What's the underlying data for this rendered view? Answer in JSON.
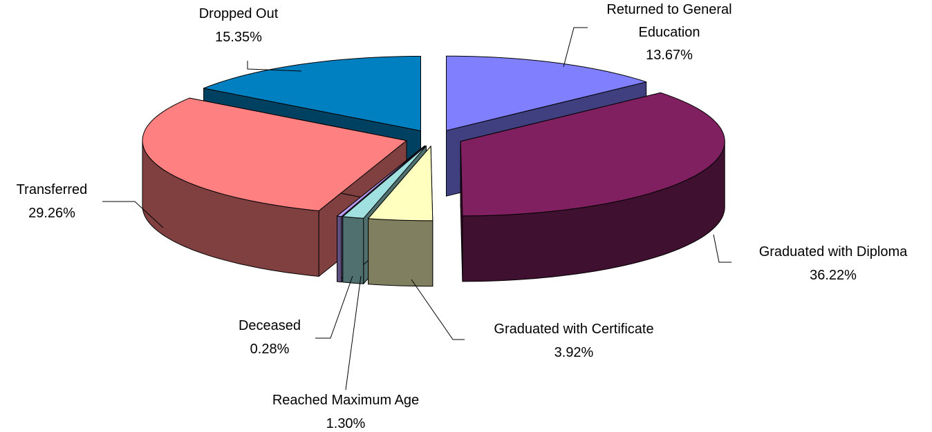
{
  "chart_data": {
    "type": "pie",
    "categories": [
      "Returned to General Education",
      "Graduated with Diploma",
      "Graduated with Certificate",
      "Reached Maximum Age",
      "Deceased",
      "Transferred",
      "Dropped Out"
    ],
    "values": [
      13.67,
      36.22,
      3.92,
      1.3,
      0.28,
      29.26,
      15.35
    ],
    "value_labels": [
      "13.67%",
      "36.22%",
      "3.92%",
      "1.30%",
      "0.28%",
      "29.26%",
      "15.35%"
    ],
    "colors": [
      "#8080ff",
      "#802060",
      "#ffffc0",
      "#a0e0e0",
      "#c0a0ff",
      "#ff8080",
      "#0080c0"
    ]
  }
}
